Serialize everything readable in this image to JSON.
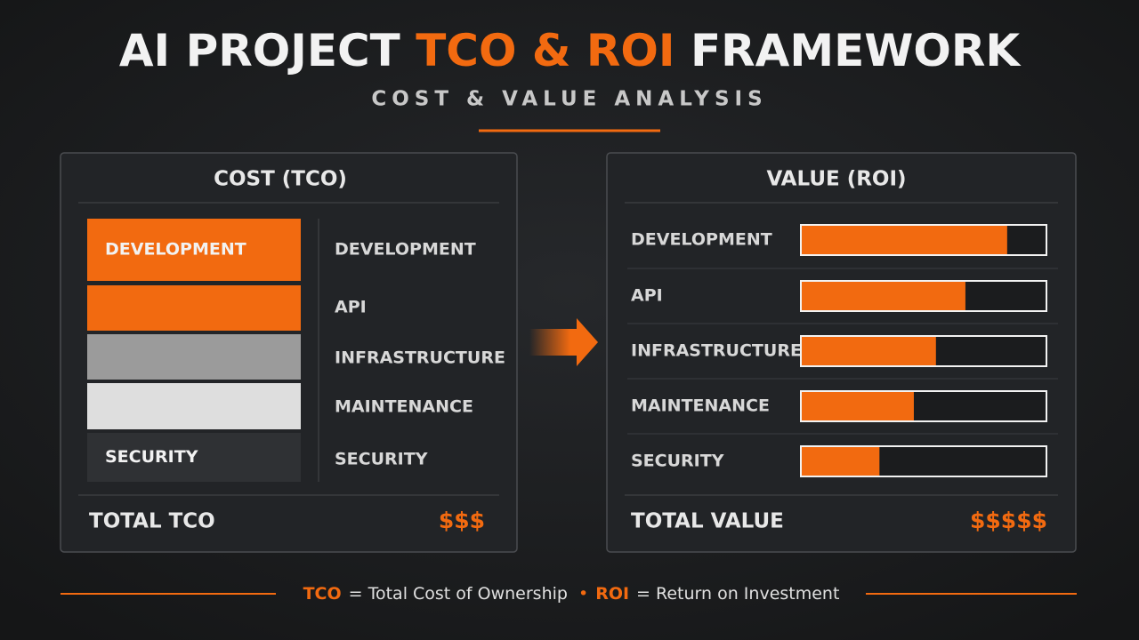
{
  "header": {
    "title": [
      "AI PROJECT",
      "TCO & ROI",
      "FRAMEWORK"
    ],
    "subtitle": "COST & VALUE ANALYSIS"
  },
  "cost": {
    "title": "COST (TCO)",
    "blocks": [
      {
        "label": "DEVELOPMENT",
        "color": "#f26a10"
      },
      {
        "color": "#f26a10"
      },
      {
        "color": "#9b9b9b"
      },
      {
        "color": "#dedede"
      },
      {
        "label": "SECURITY",
        "color": "#2f3134"
      }
    ],
    "items": [
      "DEVELOPMENT",
      "API",
      "INFRASTRUCTURE",
      "MAINTENANCE",
      "SECURITY"
    ],
    "total_label": "TOTAL TCO",
    "total_value": "$$$"
  },
  "value": {
    "title": "VALUE (ROI)",
    "rows": [
      {
        "label": "DEVELOPMENT",
        "fill": 84
      },
      {
        "label": "API",
        "fill": 67
      },
      {
        "label": "INFRASTRUCTURE",
        "fill": 55
      },
      {
        "label": "MAINTENANCE",
        "fill": 46
      },
      {
        "label": "SECURITY",
        "fill": 32
      }
    ],
    "total_label": "TOTAL VALUE",
    "total_value": "$$$$$"
  },
  "footer": [
    "TCO",
    "= Total Cost of Ownership",
    "ROI",
    "= Return on Investment"
  ]
}
